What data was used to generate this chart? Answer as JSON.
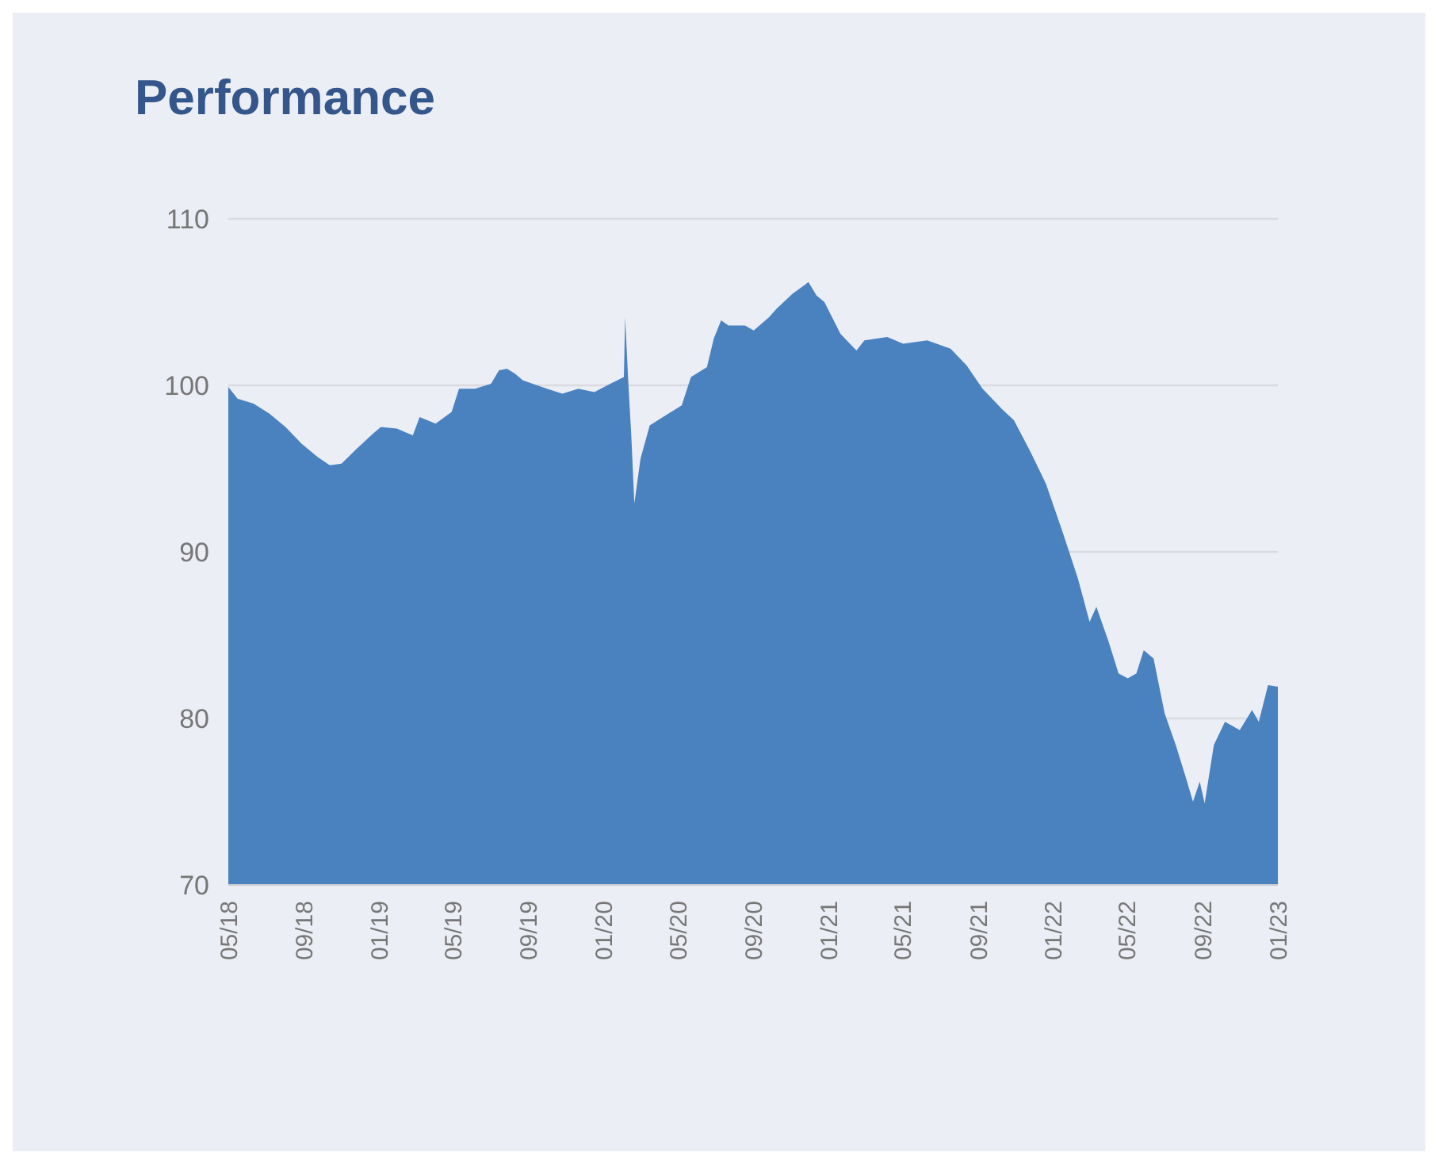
{
  "chart_data": {
    "type": "area",
    "title": "Performance",
    "color": "#4a82c0",
    "x": [
      "2018-05-01",
      "2018-05-16",
      "2018-06-11",
      "2018-07-07",
      "2018-08-02",
      "2018-08-28",
      "2018-09-23",
      "2018-10-13",
      "2018-11-01",
      "2018-11-26",
      "2018-12-22",
      "2019-01-04",
      "2019-01-30",
      "2019-02-25",
      "2019-03-08",
      "2019-04-03",
      "2019-04-29",
      "2019-05-11",
      "2019-06-06",
      "2019-07-02",
      "2019-07-15",
      "2019-07-28",
      "2019-08-10",
      "2019-08-23",
      "2019-10-01",
      "2019-10-26",
      "2019-11-21",
      "2019-12-17",
      "2020-01-12",
      "2020-02-03",
      "2020-02-05",
      "2020-02-10",
      "2020-02-15",
      "2020-02-20",
      "2020-03-01",
      "2020-03-16",
      "2020-04-11",
      "2020-05-07",
      "2020-05-22",
      "2020-06-17",
      "2020-06-28",
      "2020-07-10",
      "2020-07-22",
      "2020-08-18",
      "2020-09-01",
      "2020-09-26",
      "2020-10-08",
      "2020-11-03",
      "2020-11-29",
      "2020-12-12",
      "2020-12-25",
      "2021-01-20",
      "2021-02-15",
      "2021-02-28",
      "2021-04-06",
      "2021-05-02",
      "2021-06-10",
      "2021-07-18",
      "2021-08-13",
      "2021-09-08",
      "2021-10-09",
      "2021-10-29",
      "2021-11-25",
      "2021-12-20",
      "2022-01-16",
      "2022-02-10",
      "2022-03-01",
      "2022-03-12",
      "2022-04-01",
      "2022-04-17",
      "2022-05-02",
      "2022-05-16",
      "2022-05-28",
      "2022-06-13",
      "2022-07-01",
      "2022-07-19",
      "2022-08-04",
      "2022-08-16",
      "2022-08-27",
      "2022-09-04",
      "2022-09-19",
      "2022-10-07",
      "2022-10-31",
      "2022-11-20",
      "2022-12-01",
      "2022-12-16",
      "2023-01-01"
    ],
    "values": [
      99.9,
      99.2,
      98.9,
      98.3,
      97.5,
      96.5,
      95.7,
      95.2,
      95.3,
      96.2,
      97.1,
      97.5,
      97.4,
      97.0,
      98.1,
      97.7,
      98.4,
      99.8,
      99.8,
      100.1,
      100.9,
      101.0,
      100.7,
      100.3,
      99.8,
      99.5,
      99.8,
      99.6,
      100.1,
      100.5,
      104.1,
      100.3,
      97.0,
      92.9,
      95.6,
      97.6,
      98.2,
      98.8,
      100.5,
      101.1,
      102.8,
      103.9,
      103.6,
      103.6,
      103.3,
      104.1,
      104.6,
      105.5,
      106.2,
      105.4,
      105.0,
      103.1,
      102.1,
      102.7,
      102.9,
      102.5,
      102.7,
      102.2,
      101.2,
      99.8,
      98.6,
      97.9,
      96.0,
      94.1,
      91.2,
      88.4,
      85.8,
      86.7,
      84.6,
      82.7,
      82.4,
      82.7,
      84.1,
      83.6,
      80.3,
      78.4,
      76.5,
      75.0,
      76.2,
      74.9,
      78.4,
      79.8,
      79.3,
      80.5,
      79.8,
      82.0,
      81.9
    ],
    "xlim": [
      "2018-05-01",
      "2023-01-01"
    ],
    "xticks": [
      {
        "value": "2018-05-01",
        "label": "05/18"
      },
      {
        "value": "2018-09-01",
        "label": "09/18"
      },
      {
        "value": "2019-01-01",
        "label": "01/19"
      },
      {
        "value": "2019-05-01",
        "label": "05/19"
      },
      {
        "value": "2019-09-01",
        "label": "09/19"
      },
      {
        "value": "2020-01-01",
        "label": "01/20"
      },
      {
        "value": "2020-05-01",
        "label": "05/20"
      },
      {
        "value": "2020-09-01",
        "label": "09/20"
      },
      {
        "value": "2021-01-01",
        "label": "01/21"
      },
      {
        "value": "2021-05-01",
        "label": "05/21"
      },
      {
        "value": "2021-09-01",
        "label": "09/21"
      },
      {
        "value": "2022-01-01",
        "label": "01/22"
      },
      {
        "value": "2022-05-01",
        "label": "05/22"
      },
      {
        "value": "2022-09-01",
        "label": "09/22"
      },
      {
        "value": "2023-01-01",
        "label": "01/23"
      }
    ],
    "ylim": [
      70,
      110
    ],
    "yticks": [
      70,
      80,
      90,
      100,
      110
    ],
    "grid": "y"
  }
}
